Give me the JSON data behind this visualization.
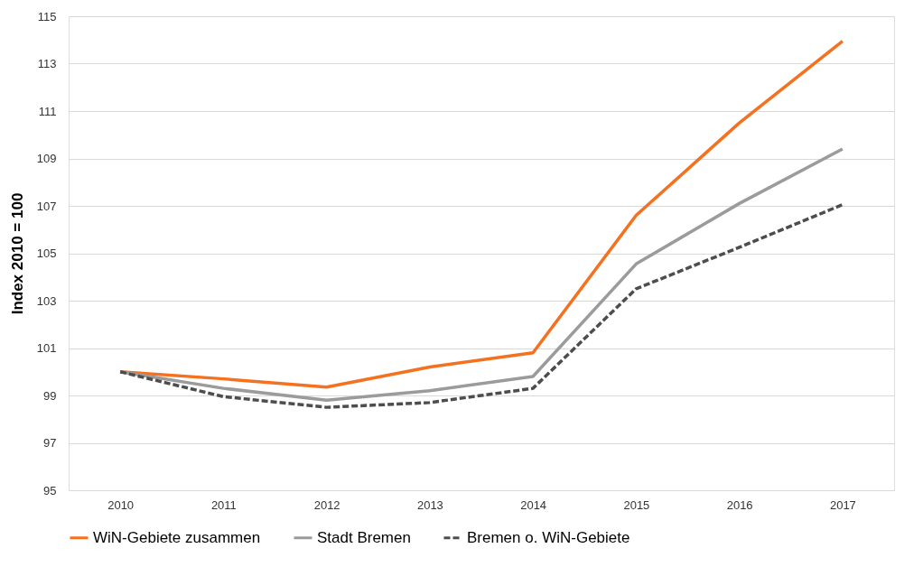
{
  "chart_data": {
    "type": "line",
    "ylabel": "Index 2010 = 100",
    "categories": [
      "2010",
      "2011",
      "2012",
      "2013",
      "2014",
      "2015",
      "2016",
      "2017"
    ],
    "ylim": [
      95,
      115
    ],
    "yticks": [
      95,
      97,
      99,
      101,
      103,
      105,
      107,
      109,
      111,
      113,
      115
    ],
    "grid": "y",
    "legend": "bottom",
    "marker": "none",
    "series": [
      {
        "name": "WiN-Gebiete zusammen",
        "color": "#f4711f",
        "line_style": "solid",
        "values": [
          100,
          99.7,
          99.35,
          100.2,
          100.8,
          106.6,
          110.5,
          113.95
        ]
      },
      {
        "name": "Stadt Bremen",
        "color": "#9b9b9b",
        "line_style": "solid",
        "values": [
          100,
          99.3,
          98.8,
          99.2,
          99.8,
          104.55,
          107.1,
          109.4
        ]
      },
      {
        "name": "Bremen o. WiN-Gebiete",
        "color": "#4d4d4d",
        "line_style": "dashed",
        "values": [
          100,
          98.95,
          98.5,
          98.7,
          99.3,
          103.5,
          105.25,
          107.05
        ]
      }
    ]
  }
}
